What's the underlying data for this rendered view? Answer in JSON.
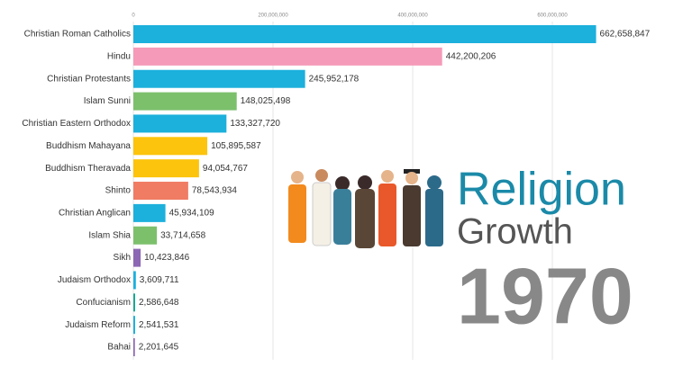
{
  "chart_data": {
    "type": "bar",
    "orientation": "horizontal",
    "title": "Religion",
    "subtitle": "Growth",
    "annotation": "1970",
    "categories": [
      "Christian Roman Catholics",
      "Hindu",
      "Christian Protestants",
      "Islam Sunni",
      "Christian Eastern Orthodox",
      "Buddhism Mahayana",
      "Buddhism Theravada",
      "Shinto",
      "Christian Anglican",
      "Islam Shia",
      "Sikh",
      "Judaism Orthodox",
      "Confucianism",
      "Judaism Reform",
      "Bahai"
    ],
    "values": [
      662658847,
      442200206,
      245952178,
      148025498,
      133327720,
      105895587,
      94054767,
      78543934,
      45934109,
      33714658,
      10423846,
      3609711,
      2586648,
      2541531,
      2201645
    ],
    "value_labels": [
      "662,658,847",
      "442,200,206",
      "245,952,178",
      "148,025,498",
      "133,327,720",
      "105,895,587",
      "94,054,767",
      "78,543,934",
      "45,934,109",
      "33,714,658",
      "10,423,846",
      "3,609,711",
      "2,586,648",
      "2,541,531",
      "2,201,645"
    ],
    "colors": [
      "#1cb0dc",
      "#f59ab8",
      "#1cb0dc",
      "#7cc06c",
      "#1cb0dc",
      "#fcc40c",
      "#fcc40c",
      "#f07c64",
      "#1cb0dc",
      "#7cc06c",
      "#8c68b4",
      "#1cb0dc",
      "#1aa893",
      "#1cb0dc",
      "#8c68b4"
    ],
    "xlim": [
      0,
      800000000
    ],
    "xticks": [
      0,
      {
        "value": 200000000,
        "label": "200,000,000"
      },
      {
        "value": 400000000,
        "label": "400,000,000"
      },
      {
        "value": 600000000,
        "label": "600,000,000"
      }
    ],
    "grid": true
  }
}
